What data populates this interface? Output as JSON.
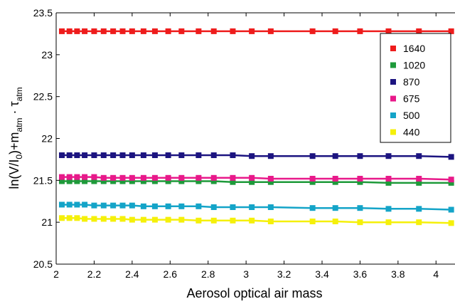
{
  "chart_data": {
    "type": "line",
    "title": "",
    "xlabel": "Aerosol optical air mass",
    "ylabel_parts": {
      "a": "ln(V/I",
      "a_sub": "0",
      "b": ")+m",
      "b_sub": "atm",
      "c": " · τ",
      "c_sub": "atm"
    },
    "xlim": [
      2,
      4.1
    ],
    "ylim": [
      20.5,
      23.5
    ],
    "xticks": [
      2,
      2.2,
      2.4,
      2.6,
      2.8,
      3,
      3.2,
      3.4,
      3.6,
      3.8,
      4
    ],
    "xtick_labels": [
      "2",
      "2.2",
      "2.4",
      "2.6",
      "2.8",
      "3",
      "3.2",
      "3.4",
      "3.6",
      "3.8",
      "4"
    ],
    "yticks": [
      20.5,
      21,
      21.5,
      22,
      22.5,
      23,
      23.5
    ],
    "ytick_labels": [
      "20.5",
      "21",
      "21.5",
      "22",
      "22.5",
      "23",
      "23.5"
    ],
    "grid": false,
    "legend_position": "top-right",
    "x": [
      2.03,
      2.07,
      2.11,
      2.15,
      2.2,
      2.25,
      2.3,
      2.35,
      2.4,
      2.46,
      2.52,
      2.59,
      2.66,
      2.75,
      2.83,
      2.93,
      3.03,
      3.13,
      3.35,
      3.47,
      3.6,
      3.75,
      3.91,
      4.08
    ],
    "series": [
      {
        "name": "1640",
        "color": "#ee1c1c",
        "values": [
          23.28,
          23.28,
          23.28,
          23.28,
          23.28,
          23.28,
          23.28,
          23.28,
          23.28,
          23.28,
          23.28,
          23.28,
          23.28,
          23.28,
          23.28,
          23.28,
          23.28,
          23.28,
          23.28,
          23.28,
          23.28,
          23.28,
          23.28,
          23.28
        ]
      },
      {
        "name": "1020",
        "color": "#1e9a3a",
        "values": [
          21.49,
          21.49,
          21.49,
          21.49,
          21.49,
          21.49,
          21.49,
          21.49,
          21.49,
          21.49,
          21.49,
          21.49,
          21.49,
          21.49,
          21.49,
          21.48,
          21.48,
          21.48,
          21.48,
          21.48,
          21.48,
          21.47,
          21.47,
          21.47
        ]
      },
      {
        "name": "870",
        "color": "#1c1480",
        "values": [
          21.8,
          21.8,
          21.8,
          21.8,
          21.8,
          21.8,
          21.8,
          21.8,
          21.8,
          21.8,
          21.8,
          21.8,
          21.8,
          21.8,
          21.8,
          21.8,
          21.79,
          21.79,
          21.79,
          21.79,
          21.79,
          21.79,
          21.79,
          21.78
        ]
      },
      {
        "name": "675",
        "color": "#e8198a",
        "values": [
          21.54,
          21.54,
          21.54,
          21.54,
          21.54,
          21.53,
          21.53,
          21.53,
          21.53,
          21.53,
          21.53,
          21.53,
          21.53,
          21.53,
          21.53,
          21.53,
          21.53,
          21.52,
          21.52,
          21.52,
          21.52,
          21.52,
          21.52,
          21.51
        ]
      },
      {
        "name": "500",
        "color": "#14a4c8",
        "values": [
          21.21,
          21.21,
          21.21,
          21.21,
          21.2,
          21.2,
          21.2,
          21.2,
          21.2,
          21.19,
          21.19,
          21.19,
          21.19,
          21.19,
          21.18,
          21.18,
          21.18,
          21.18,
          21.17,
          21.17,
          21.17,
          21.16,
          21.16,
          21.15
        ]
      },
      {
        "name": "440",
        "color": "#f5f00a",
        "values": [
          21.05,
          21.05,
          21.05,
          21.04,
          21.04,
          21.04,
          21.04,
          21.04,
          21.03,
          21.03,
          21.03,
          21.03,
          21.03,
          21.02,
          21.02,
          21.02,
          21.02,
          21.01,
          21.01,
          21.01,
          21.0,
          21.0,
          21.0,
          20.99
        ]
      }
    ]
  }
}
